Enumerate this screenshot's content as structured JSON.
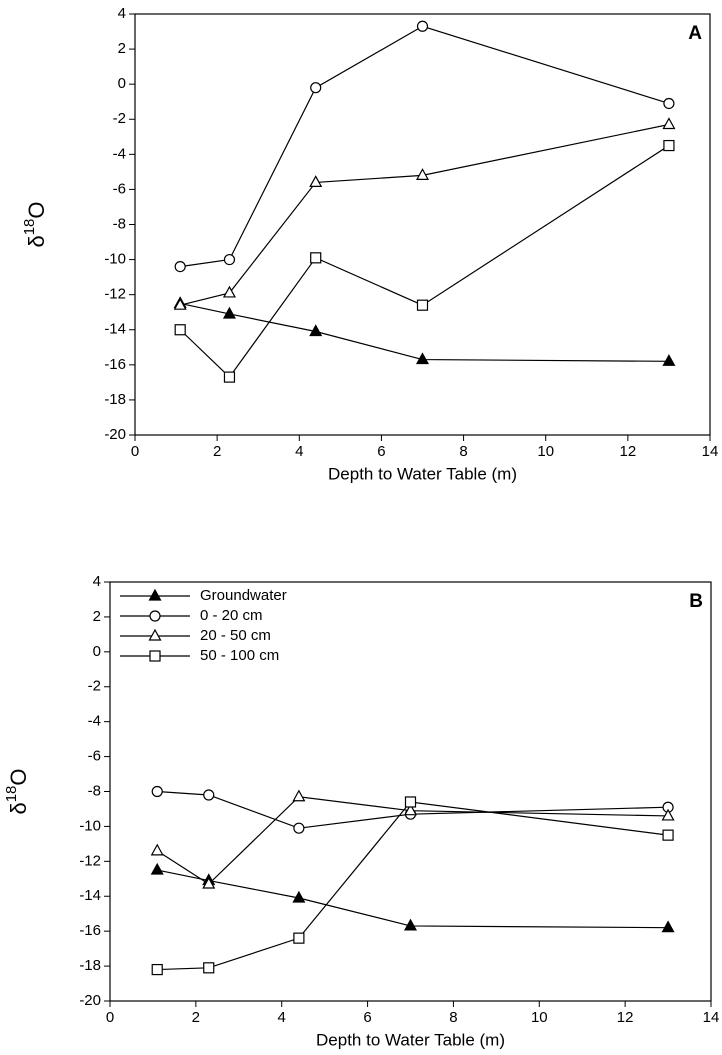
{
  "chart_data": [
    {
      "type": "line",
      "panel_label": "A",
      "x_label": "Depth to Water Table (m)",
      "y_label": [
        "δ",
        "18",
        "O"
      ],
      "x": [
        1.1,
        2.3,
        4.4,
        7.0,
        13.0
      ],
      "series": [
        {
          "name": "Groundwater",
          "color": "#000000",
          "marker": "triangle-filled",
          "values": [
            -12.5,
            -13.1,
            -14.1,
            -15.7,
            -15.8
          ]
        },
        {
          "name": "0 - 20 cm",
          "color": "#000000",
          "marker": "circle",
          "values": [
            -10.4,
            -10.0,
            -0.2,
            3.3,
            -1.1
          ]
        },
        {
          "name": "20 - 50 cm",
          "color": "#000000",
          "marker": "triangle",
          "values": [
            -12.6,
            -11.9,
            -5.6,
            -5.2,
            -2.3
          ]
        },
        {
          "name": "50 - 100 cm",
          "color": "#000000",
          "marker": "square",
          "values": [
            -14.0,
            -16.7,
            -9.9,
            -12.6,
            -3.5
          ]
        }
      ],
      "xlim": [
        0,
        14
      ],
      "xticks": [
        0,
        2,
        4,
        6,
        8,
        10,
        12,
        14
      ],
      "ylim": [
        -20,
        4
      ],
      "yticks": [
        -20,
        -18,
        -16,
        -14,
        -12,
        -10,
        -8,
        -6,
        -4,
        -2,
        0,
        2,
        4
      ],
      "grid": false
    },
    {
      "type": "line",
      "panel_label": "B",
      "x_label": "Depth to Water Table (m)",
      "y_label": [
        "δ",
        "18",
        "O"
      ],
      "x": [
        1.1,
        2.3,
        4.4,
        7.0,
        13.0
      ],
      "legend": "upper left",
      "series": [
        {
          "name": "Groundwater",
          "color": "#000000",
          "marker": "triangle-filled",
          "values": [
            -12.5,
            -13.1,
            -14.1,
            -15.7,
            -15.8
          ]
        },
        {
          "name": "0 - 20 cm",
          "color": "#000000",
          "marker": "circle",
          "values": [
            -8.0,
            -8.2,
            -10.1,
            -9.3,
            -8.9
          ]
        },
        {
          "name": "20 - 50 cm",
          "color": "#000000",
          "marker": "triangle",
          "values": [
            -11.4,
            -13.3,
            -8.3,
            -9.1,
            -9.4
          ]
        },
        {
          "name": "50 - 100 cm",
          "color": "#000000",
          "marker": "square",
          "values": [
            -18.2,
            -18.1,
            -16.4,
            -8.6,
            -10.5
          ]
        }
      ],
      "xlim": [
        0,
        14
      ],
      "xticks": [
        0,
        2,
        4,
        6,
        8,
        10,
        12,
        14
      ],
      "ylim": [
        -20,
        4
      ],
      "yticks": [
        -20,
        -18,
        -16,
        -14,
        -12,
        -10,
        -8,
        -6,
        -4,
        -2,
        0,
        2,
        4
      ],
      "grid": false
    }
  ]
}
